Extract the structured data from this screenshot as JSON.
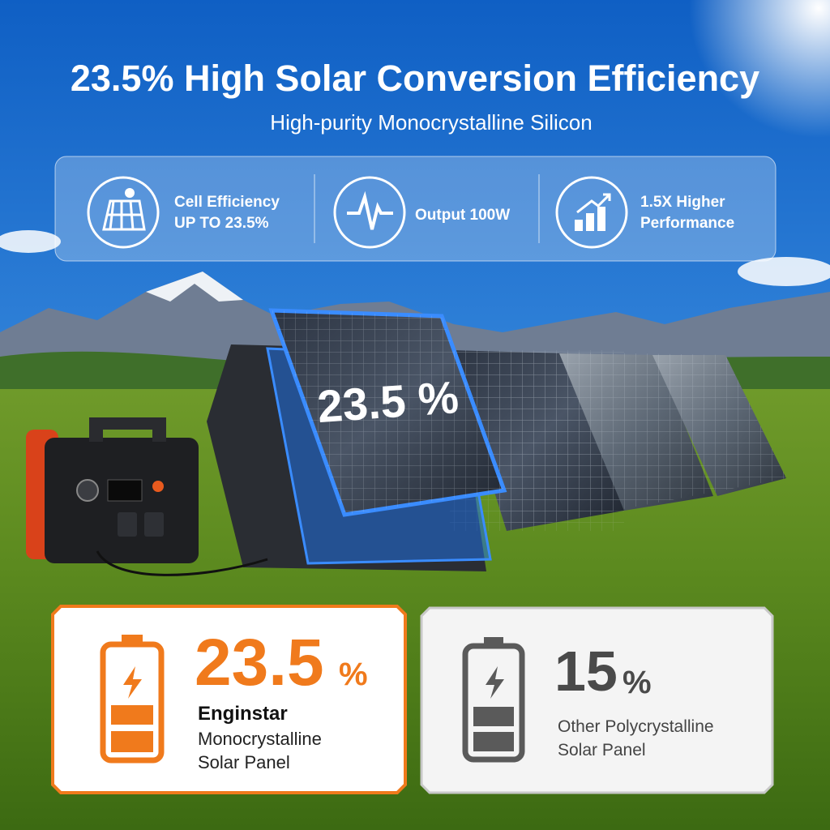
{
  "header": {
    "title": "23.5% High Solar Conversion Efficiency",
    "subtitle": "High-purity Monocrystalline Silicon"
  },
  "features": [
    {
      "lines": [
        "Cell Efficiency",
        "UP TO 23.5%"
      ]
    },
    {
      "lines": [
        "Output 100W"
      ]
    },
    {
      "lines": [
        "1.5X Higher",
        "Performance"
      ]
    }
  ],
  "panel_label": "23.5 %",
  "comparison": {
    "enginstar": {
      "value": "23.5",
      "unit": "%",
      "brand": "Enginstar",
      "lines": [
        "Monocrystalline",
        "Solar Panel"
      ]
    },
    "other": {
      "value": "15",
      "unit": "%",
      "lines": [
        "Other Polycrystalline",
        "Solar Panel"
      ]
    }
  }
}
